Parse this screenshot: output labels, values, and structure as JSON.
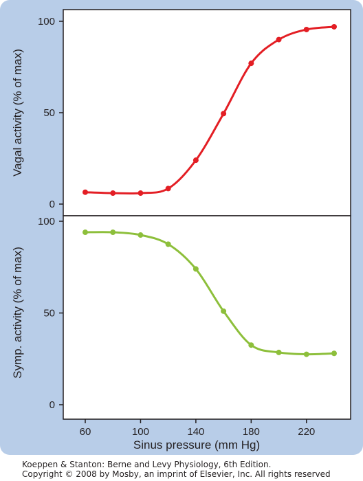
{
  "figure": {
    "credit_line1": "Koeppen & Stanton: Berne and Levy Physiology, 6th Edition.",
    "credit_line2": "Copyright © 2008 by Mosby, an imprint of Elsevier, Inc. All rights reserved",
    "background_color": "#b8cde8",
    "panel_color": "#ffffff"
  },
  "chart_data": [
    {
      "type": "line",
      "title": "",
      "xlabel": "",
      "ylabel": "Vagal activity (% of max)",
      "xlim": [
        50,
        245
      ],
      "ylim": [
        0,
        100
      ],
      "yticks": [
        0,
        50,
        100
      ],
      "grid": false,
      "series": [
        {
          "color": "#e31e24",
          "x": [
            60,
            80,
            100,
            120,
            140,
            160,
            180,
            200,
            220,
            240
          ],
          "y": [
            6.5,
            6,
            6,
            8.5,
            24,
            49.5,
            77,
            90,
            95.5,
            97
          ]
        }
      ]
    },
    {
      "type": "line",
      "title": "",
      "xlabel": "Sinus pressure (mm Hg)",
      "ylabel": "Symp. activity (% of max)",
      "xlim": [
        50,
        245
      ],
      "ylim": [
        0,
        100
      ],
      "yticks": [
        0,
        50,
        100
      ],
      "xticks": [
        60,
        100,
        140,
        180,
        220
      ],
      "grid": false,
      "series": [
        {
          "color": "#8dbf3b",
          "x": [
            60,
            80,
            100,
            120,
            140,
            160,
            180,
            200,
            220,
            240
          ],
          "y": [
            94,
            94,
            92.5,
            87.5,
            74,
            51,
            32.5,
            28.5,
            27.5,
            28
          ]
        }
      ]
    }
  ]
}
